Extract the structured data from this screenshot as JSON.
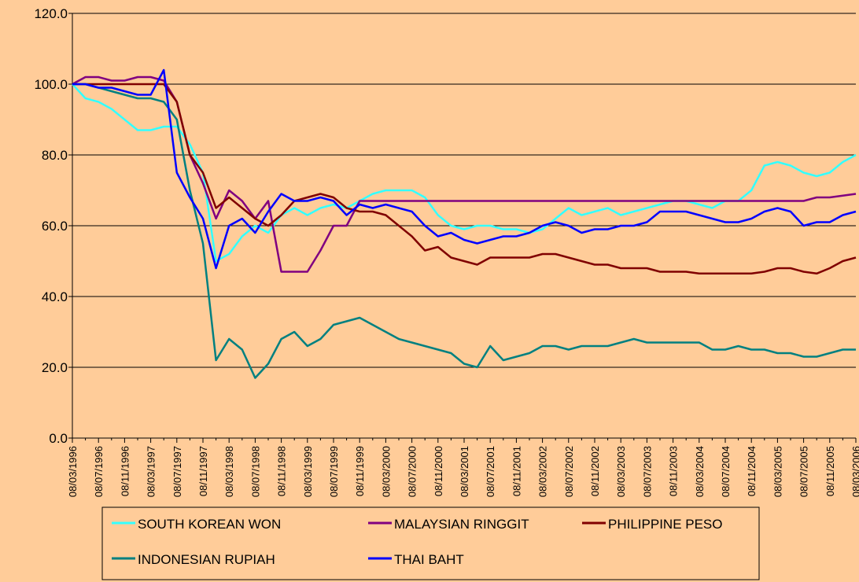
{
  "chart_data": {
    "type": "line",
    "categories": [
      "08/03/1996",
      null,
      "08/07/1996",
      null,
      "08/11/1996",
      null,
      "08/03/1997",
      null,
      "08/07/1997",
      null,
      "08/11/1997",
      null,
      "08/03/1998",
      null,
      "08/07/1998",
      null,
      "08/11/1998",
      null,
      "08/03/1999",
      null,
      "08/07/1999",
      null,
      "08/11/1999",
      null,
      "08/03/2000",
      null,
      "08/07/2000",
      null,
      "08/11/2000",
      null,
      "08/03/2001",
      null,
      "08/07/2001",
      null,
      "08/11/2001",
      null,
      "08/03/2002",
      null,
      "08/07/2002",
      null,
      "08/11/2002",
      null,
      "08/03/2003",
      null,
      "08/07/2003",
      null,
      "08/11/2003",
      null,
      "08/03/2004",
      null,
      "08/07/2004",
      null,
      "08/11/2004",
      null,
      "08/03/2005",
      null,
      "08/07/2005",
      null,
      "08/11/2005",
      null,
      "08/03/2006"
    ],
    "series": [
      {
        "name": "SOUTH KOREAN WON",
        "color": "#33FFFF",
        "values": [
          100,
          96,
          95,
          93,
          90,
          87,
          87,
          88,
          88,
          83,
          75,
          50,
          52,
          57,
          60,
          58,
          63,
          65,
          63,
          65,
          66,
          65,
          67,
          69,
          70,
          70,
          70,
          68,
          63,
          60,
          59,
          60,
          60,
          59,
          59,
          58,
          59,
          62,
          65,
          63,
          64,
          65,
          63,
          64,
          65,
          66,
          67,
          67,
          66,
          65,
          67,
          67,
          70,
          77,
          78,
          77,
          75,
          74,
          75,
          78,
          80
        ]
      },
      {
        "name": "MALAYSIAN RINGGIT",
        "color": "#800080",
        "values": [
          100,
          102,
          102,
          101,
          101,
          102,
          102,
          101,
          95,
          80,
          72,
          62,
          70,
          67,
          62,
          67,
          47,
          47,
          47,
          53,
          60,
          60,
          67,
          67,
          67,
          67,
          67,
          67,
          67,
          67,
          67,
          67,
          67,
          67,
          67,
          67,
          67,
          67,
          67,
          67,
          67,
          67,
          67,
          67,
          67,
          67,
          67,
          67,
          67,
          67,
          67,
          67,
          67,
          67,
          67,
          67,
          67,
          68,
          68,
          68.5,
          69
        ]
      },
      {
        "name": "PHILIPPINE PESO",
        "color": "#800000",
        "values": [
          100,
          100,
          100,
          100,
          100,
          100,
          100,
          100,
          95,
          80,
          75,
          65,
          68,
          65,
          62,
          60,
          63,
          67,
          68,
          69,
          68,
          65,
          64,
          64,
          63,
          60,
          57,
          53,
          54,
          51,
          50,
          49,
          51,
          51,
          51,
          51,
          52,
          52,
          51,
          50,
          49,
          49,
          48,
          48,
          48,
          47,
          47,
          47,
          46.5,
          46.5,
          46.5,
          46.5,
          46.5,
          47,
          48,
          48,
          47,
          46.5,
          48,
          50,
          51
        ]
      },
      {
        "name": "INDONESIAN RUPIAH",
        "color": "#008080",
        "values": [
          100,
          100,
          99,
          98,
          97,
          96,
          96,
          95,
          90,
          70,
          55,
          22,
          28,
          25,
          17,
          21,
          28,
          30,
          26,
          28,
          32,
          33,
          34,
          32,
          30,
          28,
          27,
          26,
          25,
          24,
          21,
          20,
          26,
          22,
          23,
          24,
          26,
          26,
          25,
          26,
          26,
          26,
          27,
          28,
          27,
          27,
          27,
          27,
          27,
          25,
          25,
          26,
          25,
          25,
          24,
          24,
          23,
          23,
          24,
          25,
          25
        ]
      },
      {
        "name": "THAI BAHT",
        "color": "#0000FF",
        "values": [
          100,
          100,
          99,
          99,
          98,
          97,
          97,
          104,
          75,
          68,
          62,
          48,
          60,
          62,
          58,
          64,
          69,
          67,
          67,
          68,
          67,
          63,
          66,
          65,
          66,
          65,
          64,
          60,
          57,
          58,
          56,
          55,
          56,
          57,
          57,
          58,
          60,
          61,
          60,
          58,
          59,
          59,
          60,
          60,
          61,
          64,
          64,
          64,
          63,
          62,
          61,
          61,
          62,
          64,
          65,
          64,
          60,
          61,
          61,
          63,
          64
        ]
      }
    ],
    "ylim": [
      0,
      120
    ],
    "yticks": [
      {
        "value": 0,
        "label": "0.0"
      },
      {
        "value": 20,
        "label": "20.0"
      },
      {
        "value": 40,
        "label": "40.0"
      },
      {
        "value": 60,
        "label": "60.0"
      },
      {
        "value": 80,
        "label": "80.0"
      },
      {
        "value": 100,
        "label": "100.0"
      },
      {
        "value": 120,
        "label": "120.0"
      }
    ],
    "grid": true,
    "legend": "bottom"
  }
}
